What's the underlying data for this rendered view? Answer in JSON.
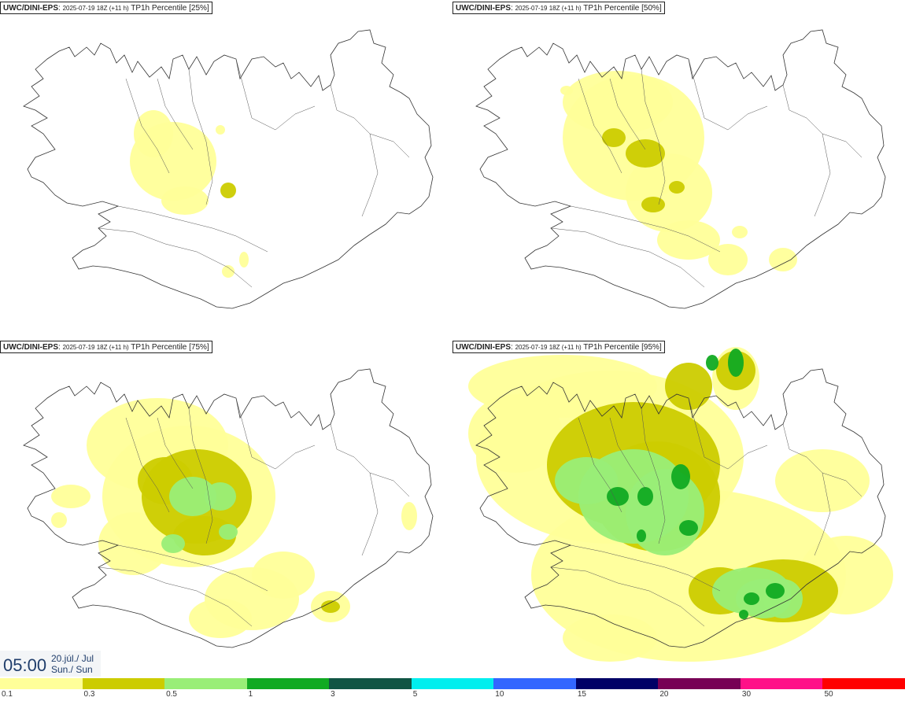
{
  "panels": [
    {
      "model": "UWC/DINI-EPS",
      "run": "2025-07-19 18Z (+11 h)",
      "field": "TP1h Percentile [25%]",
      "percentile": 25
    },
    {
      "model": "UWC/DINI-EPS",
      "run": "2025-07-19 18Z (+11 h)",
      "field": "TP1h Percentile [50%]",
      "percentile": 50
    },
    {
      "model": "UWC/DINI-EPS",
      "run": "2025-07-19 18Z (+11 h)",
      "field": "TP1h Percentile [75%]",
      "percentile": 75
    },
    {
      "model": "UWC/DINI-EPS",
      "run": "2025-07-19 18Z (+11 h)",
      "field": "TP1h Percentile [95%]",
      "percentile": 95
    }
  ],
  "time": {
    "clock": "05:00",
    "date": "20.júl./ Jul",
    "weekday": "Sun./ Sun"
  },
  "legend": {
    "levels": [
      "0.1",
      "0.3",
      "0.5",
      "1",
      "3",
      "5",
      "10",
      "15",
      "20",
      "30",
      "50"
    ],
    "colors": [
      "#ffff99",
      "#cccc00",
      "#99ee77",
      "#11aa22",
      "#115544",
      "#00eeee",
      "#3366ff",
      "#000066",
      "#770055",
      "#ff1188",
      "#ff0000"
    ]
  }
}
